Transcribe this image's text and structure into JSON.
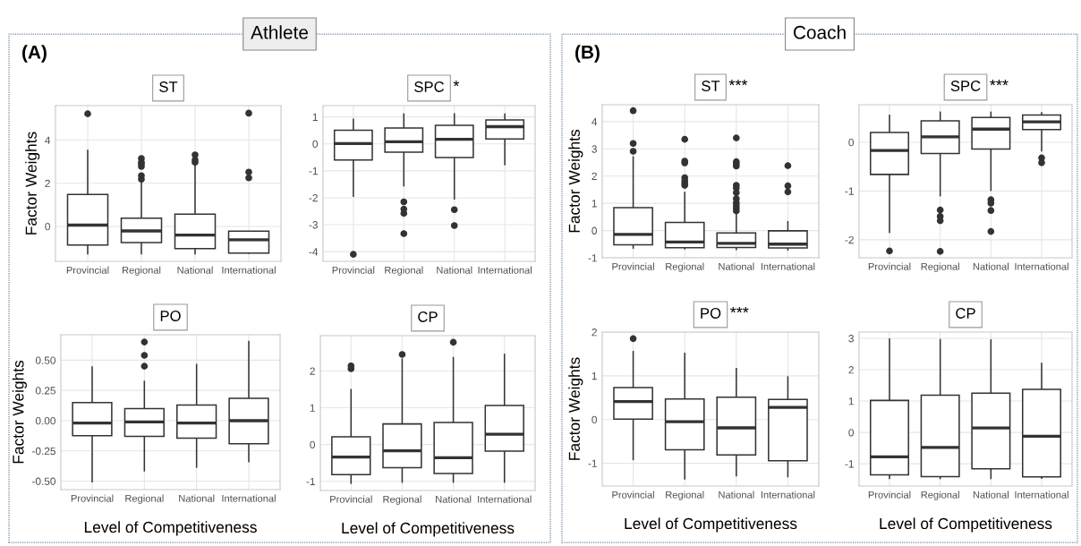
{
  "chart_data": [
    {
      "type": "box",
      "title": "ST",
      "annotations": [
        "Athlete",
        "(A)"
      ],
      "ylabel": "Factor Weights",
      "categories": [
        "Provincial",
        "Regional",
        "National",
        "International"
      ],
      "ylim": [
        -1.62,
        5.6
      ],
      "yticks": [
        0,
        2,
        4
      ],
      "grid": true,
      "boxes": [
        {
          "low": -1.3,
          "q1": -0.86,
          "median": 0.06,
          "q3": 1.48,
          "high": 3.56,
          "outliers": [
            5.22
          ]
        },
        {
          "low": -1.3,
          "q1": -0.75,
          "median": -0.21,
          "q3": 0.38,
          "high": 2.1,
          "outliers": [
            2.19,
            2.35,
            2.78,
            2.9,
            2.98,
            3.15
          ]
        },
        {
          "low": -1.3,
          "q1": -1.03,
          "median": -0.4,
          "q3": 0.57,
          "high": 2.83,
          "outliers": [
            2.97,
            3.08,
            3.32
          ]
        },
        {
          "low": -1.27,
          "q1": -1.24,
          "median": -0.62,
          "q3": -0.22,
          "high": -0.22,
          "outliers": [
            2.25,
            2.52,
            5.25
          ]
        }
      ]
    },
    {
      "type": "box",
      "title": "SPC",
      "annotations": [
        "*"
      ],
      "categories": [
        "Provincial",
        "Regional",
        "National",
        "International"
      ],
      "ylim": [
        -4.36,
        1.42
      ],
      "yticks": [
        -4,
        -3,
        -2,
        -1,
        0,
        1
      ],
      "grid": true,
      "boxes": [
        {
          "low": -1.97,
          "q1": -0.6,
          "median": 0.01,
          "q3": 0.51,
          "high": 0.94,
          "outliers": [
            -4.1
          ]
        },
        {
          "low": -1.58,
          "q1": -0.31,
          "median": 0.08,
          "q3": 0.59,
          "high": 1.13,
          "outliers": [
            -2.15,
            -2.42,
            -2.58,
            -3.33
          ]
        },
        {
          "low": -2.07,
          "q1": -0.51,
          "median": 0.17,
          "q3": 0.69,
          "high": 1.14,
          "outliers": [
            -2.44,
            -3.03
          ]
        },
        {
          "low": -0.8,
          "q1": 0.18,
          "median": 0.64,
          "q3": 0.89,
          "high": 1.13
        }
      ]
    },
    {
      "type": "box",
      "title": "PO",
      "ylabel": "Factor Weights",
      "xlabel": "Level of Competitiveness",
      "categories": [
        "Provincial",
        "Regional",
        "National",
        "International"
      ],
      "ylim": [
        -0.57,
        0.71
      ],
      "yticks": [
        {
          "value": -0.5,
          "label": "-0.50"
        },
        {
          "value": -0.25,
          "label": "-0.25"
        },
        {
          "value": 0,
          "label": "0.00"
        },
        {
          "value": 0.25,
          "label": "0.25"
        },
        {
          "value": 0.5,
          "label": "0.50"
        }
      ],
      "grid": true,
      "boxes": [
        {
          "low": -0.51,
          "q1": -0.125,
          "median": -0.02,
          "q3": 0.15,
          "high": 0.45
        },
        {
          "low": -0.42,
          "q1": -0.13,
          "median": -0.01,
          "q3": 0.1,
          "high": 0.33,
          "outliers": [
            0.45,
            0.54,
            0.65
          ]
        },
        {
          "low": -0.39,
          "q1": -0.145,
          "median": -0.02,
          "q3": 0.13,
          "high": 0.47
        },
        {
          "low": -0.345,
          "q1": -0.19,
          "median": 0.0,
          "q3": 0.185,
          "high": 0.66
        }
      ]
    },
    {
      "type": "box",
      "title": "CP",
      "xlabel": "Level of Competitiveness",
      "categories": [
        "Provincial",
        "Regional",
        "National",
        "International"
      ],
      "ylim": [
        -1.25,
        2.96
      ],
      "yticks": [
        -1,
        0,
        1,
        2
      ],
      "grid": true,
      "boxes": [
        {
          "low": -1.07,
          "q1": -0.82,
          "median": -0.34,
          "q3": 0.21,
          "high": 1.51,
          "outliers": [
            2.06,
            2.14
          ]
        },
        {
          "low": -1.04,
          "q1": -0.63,
          "median": -0.17,
          "q3": 0.56,
          "high": 2.34,
          "outliers": [
            2.45
          ]
        },
        {
          "low": -1.04,
          "q1": -0.79,
          "median": -0.36,
          "q3": 0.6,
          "high": 2.38,
          "outliers": [
            2.78
          ]
        },
        {
          "low": -1.04,
          "q1": -0.18,
          "median": 0.28,
          "q3": 1.06,
          "high": 2.47
        }
      ]
    },
    {
      "type": "box",
      "title": "ST",
      "annotations": [
        "Coach",
        "(B)",
        "***"
      ],
      "ylabel": "Factor Weights",
      "categories": [
        "Provincial",
        "Regional",
        "National",
        "International"
      ],
      "ylim": [
        -1.0,
        4.62
      ],
      "yticks": [
        -1,
        0,
        1,
        2,
        3,
        4
      ],
      "grid": true,
      "boxes": [
        {
          "low": -0.67,
          "q1": -0.52,
          "median": -0.14,
          "q3": 0.84,
          "high": 2.73,
          "outliers": [
            2.91,
            3.2,
            4.4
          ]
        },
        {
          "low": -0.7,
          "q1": -0.63,
          "median": -0.42,
          "q3": 0.3,
          "high": 1.42,
          "outliers": [
            1.66,
            1.74,
            1.83,
            1.94,
            2.48,
            2.55,
            3.35
          ]
        },
        {
          "low": -0.72,
          "q1": -0.62,
          "median": -0.47,
          "q3": -0.09,
          "high": 0.64,
          "outliers": [
            0.72,
            0.82,
            0.92,
            1.02,
            1.17,
            1.39,
            1.56,
            1.66,
            2.37,
            2.45,
            2.53,
            3.4
          ]
        },
        {
          "low": -0.74,
          "q1": -0.64,
          "median": -0.5,
          "q3": -0.01,
          "high": 0.35,
          "outliers": [
            1.42,
            1.64,
            2.38
          ]
        }
      ]
    },
    {
      "type": "box",
      "title": "SPC",
      "annotations": [
        "***"
      ],
      "categories": [
        "Provincial",
        "Regional",
        "National",
        "International"
      ],
      "ylim": [
        -2.37,
        0.77
      ],
      "yticks": [
        -2,
        -1,
        0
      ],
      "grid": true,
      "boxes": [
        {
          "low": -1.86,
          "q1": -0.66,
          "median": -0.17,
          "q3": 0.2,
          "high": 0.57,
          "outliers": [
            -2.23
          ]
        },
        {
          "low": -1.11,
          "q1": -0.23,
          "median": 0.11,
          "q3": 0.44,
          "high": 0.63,
          "outliers": [
            -1.39,
            -1.52,
            -1.61,
            -2.24
          ]
        },
        {
          "low": -1.0,
          "q1": -0.14,
          "median": 0.27,
          "q3": 0.51,
          "high": 0.63,
          "outliers": [
            -1.18,
            -1.25,
            -1.4,
            -1.83
          ]
        },
        {
          "low": -0.19,
          "q1": 0.26,
          "median": 0.42,
          "q3": 0.56,
          "high": 0.62,
          "outliers": [
            -0.32,
            -0.42
          ]
        }
      ]
    },
    {
      "type": "box",
      "title": "PO",
      "annotations": [
        "***"
      ],
      "ylabel": "Factor Weights",
      "xlabel": "Level of Competitiveness",
      "categories": [
        "Provincial",
        "Regional",
        "National",
        "International"
      ],
      "ylim": [
        -1.52,
        2.0
      ],
      "yticks": [
        -1,
        0,
        1,
        2
      ],
      "grid": true,
      "boxes": [
        {
          "low": -0.93,
          "q1": 0.01,
          "median": 0.41,
          "q3": 0.73,
          "high": 1.57,
          "outliers": [
            1.85
          ]
        },
        {
          "low": -1.37,
          "q1": -0.69,
          "median": -0.05,
          "q3": 0.47,
          "high": 1.53
        },
        {
          "low": -1.3,
          "q1": -0.81,
          "median": -0.19,
          "q3": 0.51,
          "high": 1.18
        },
        {
          "low": -1.32,
          "q1": -0.94,
          "median": 0.28,
          "q3": 0.46,
          "high": 0.99
        }
      ]
    },
    {
      "type": "box",
      "title": "CP",
      "xlabel": "Level of Competitiveness",
      "categories": [
        "Provincial",
        "Regional",
        "National",
        "International"
      ],
      "ylim": [
        -1.71,
        3.2
      ],
      "yticks": [
        -1,
        0,
        1,
        2,
        3
      ],
      "grid": true,
      "boxes": [
        {
          "low": -1.49,
          "q1": -1.35,
          "median": -0.78,
          "q3": 1.02,
          "high": 3.0
        },
        {
          "low": -1.49,
          "q1": -1.41,
          "median": -0.48,
          "q3": 1.19,
          "high": 2.98
        },
        {
          "low": -1.49,
          "q1": -1.16,
          "median": 0.14,
          "q3": 1.25,
          "high": 2.97
        },
        {
          "low": -1.48,
          "q1": -1.42,
          "median": -0.12,
          "q3": 1.37,
          "high": 2.22
        }
      ]
    }
  ]
}
